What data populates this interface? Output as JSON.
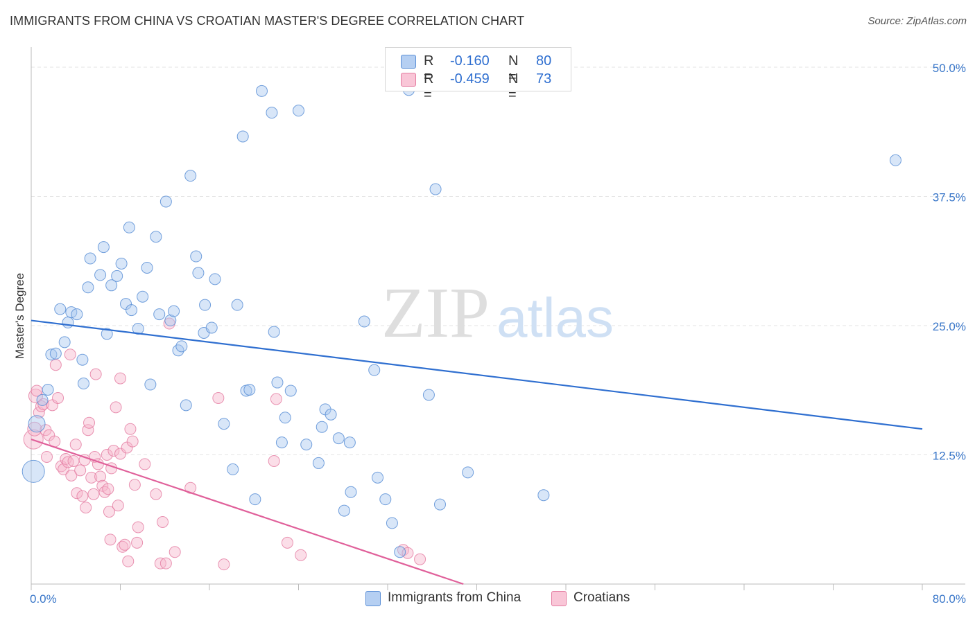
{
  "header": {
    "title": "IMMIGRANTS FROM CHINA VS CROATIAN MASTER'S DEGREE CORRELATION CHART",
    "source": "Source: ZipAtlas.com"
  },
  "watermark": {
    "part1": "ZIP",
    "part2": "atlas"
  },
  "legend_top": {
    "rows": [
      {
        "r_label": "R =",
        "r_value": "-0.160",
        "n_label": "N =",
        "n_value": "80"
      },
      {
        "r_label": "R =",
        "r_value": "-0.459",
        "n_label": "N =",
        "n_value": "73"
      }
    ]
  },
  "legend_bottom": {
    "items": [
      {
        "label": "Immigrants from China"
      },
      {
        "label": "Croatians"
      }
    ]
  },
  "colors": {
    "china_fill": "#a9c8f0",
    "china_stroke": "#5b8fd6",
    "china_line": "#2f6fd0",
    "croatian_fill": "#f6b5cb",
    "croatian_stroke": "#e47ba0",
    "croatian_line": "#e0609a",
    "tick_label": "#3a77c9",
    "grid": "#e3e3e3"
  },
  "chart_data": {
    "type": "scatter",
    "title": "IMMIGRANTS FROM CHINA VS CROATIAN MASTER'S DEGREE CORRELATION CHART",
    "xlabel": "",
    "ylabel": "Master's Degree",
    "xlim": [
      0,
      80
    ],
    "ylim": [
      0,
      50
    ],
    "x_tick_labels": [
      "0.0%",
      "80.0%"
    ],
    "y_ticks": [
      12.5,
      25,
      37.5,
      50
    ],
    "y_tick_labels": [
      "12.5%",
      "25.0%",
      "37.5%",
      "50.0%"
    ],
    "grid": "horizontal dashed",
    "legend_position": "top-center",
    "series": [
      {
        "name": "Immigrants from China",
        "r": -0.16,
        "n": 80,
        "trend": {
          "x": [
            0,
            80
          ],
          "y": [
            25.5,
            15.0
          ]
        },
        "points": [
          [
            0.2,
            10.9,
            16
          ],
          [
            0.5,
            15.5,
            12
          ],
          [
            1.0,
            17.8,
            8
          ],
          [
            1.5,
            18.8,
            8
          ],
          [
            1.8,
            22.2,
            8
          ],
          [
            2.2,
            22.3,
            8
          ],
          [
            2.6,
            26.6,
            8
          ],
          [
            3.0,
            23.4,
            8
          ],
          [
            3.3,
            25.3,
            8
          ],
          [
            3.6,
            26.3,
            8
          ],
          [
            4.1,
            26.1,
            8
          ],
          [
            4.6,
            21.7,
            8
          ],
          [
            4.7,
            19.4,
            8
          ],
          [
            5.1,
            28.7,
            8
          ],
          [
            5.3,
            31.5,
            8
          ],
          [
            6.2,
            29.9,
            8
          ],
          [
            6.5,
            32.6,
            8
          ],
          [
            6.8,
            24.2,
            8
          ],
          [
            7.2,
            28.9,
            8
          ],
          [
            7.7,
            29.8,
            8
          ],
          [
            8.1,
            31.0,
            8
          ],
          [
            8.5,
            27.1,
            8
          ],
          [
            8.8,
            34.5,
            8
          ],
          [
            9.0,
            26.5,
            8
          ],
          [
            9.6,
            24.7,
            8
          ],
          [
            10.0,
            27.8,
            8
          ],
          [
            10.4,
            30.6,
            8
          ],
          [
            10.7,
            19.3,
            8
          ],
          [
            11.2,
            33.6,
            8
          ],
          [
            11.5,
            26.1,
            8
          ],
          [
            12.1,
            37.0,
            8
          ],
          [
            12.5,
            25.5,
            8
          ],
          [
            12.8,
            26.4,
            8
          ],
          [
            13.2,
            22.6,
            8
          ],
          [
            13.5,
            23.0,
            8
          ],
          [
            13.9,
            17.3,
            8
          ],
          [
            14.3,
            39.5,
            8
          ],
          [
            14.8,
            31.7,
            8
          ],
          [
            15.0,
            30.1,
            8
          ],
          [
            15.5,
            24.3,
            8
          ],
          [
            15.6,
            27.0,
            8
          ],
          [
            16.2,
            24.8,
            8
          ],
          [
            16.5,
            29.5,
            8
          ],
          [
            17.3,
            15.5,
            8
          ],
          [
            18.1,
            11.1,
            8
          ],
          [
            18.5,
            27.0,
            8
          ],
          [
            19.0,
            43.3,
            8
          ],
          [
            19.3,
            18.7,
            8
          ],
          [
            19.6,
            18.8,
            8
          ],
          [
            20.1,
            8.2,
            8
          ],
          [
            20.7,
            47.7,
            8
          ],
          [
            21.6,
            45.6,
            8
          ],
          [
            21.8,
            24.4,
            8
          ],
          [
            22.1,
            19.5,
            8
          ],
          [
            22.5,
            13.7,
            8
          ],
          [
            22.8,
            16.1,
            8
          ],
          [
            23.3,
            18.7,
            8
          ],
          [
            24.0,
            45.8,
            8
          ],
          [
            24.7,
            13.5,
            8
          ],
          [
            25.8,
            11.7,
            8
          ],
          [
            26.1,
            15.2,
            8
          ],
          [
            26.4,
            16.9,
            8
          ],
          [
            26.9,
            16.4,
            8
          ],
          [
            27.6,
            14.1,
            8
          ],
          [
            28.1,
            7.1,
            8
          ],
          [
            28.6,
            13.7,
            8
          ],
          [
            28.7,
            8.9,
            8
          ],
          [
            29.9,
            25.4,
            8
          ],
          [
            30.8,
            20.7,
            8
          ],
          [
            31.1,
            10.3,
            8
          ],
          [
            31.8,
            8.2,
            8
          ],
          [
            32.4,
            5.9,
            8
          ],
          [
            33.1,
            3.1,
            8
          ],
          [
            33.9,
            47.8,
            8
          ],
          [
            35.7,
            18.3,
            8
          ],
          [
            36.3,
            38.2,
            8
          ],
          [
            36.7,
            7.7,
            8
          ],
          [
            39.2,
            10.8,
            8
          ],
          [
            46.0,
            8.6,
            8
          ],
          [
            77.6,
            41.0,
            8
          ]
        ]
      },
      {
        "name": "Croatians",
        "r": -0.459,
        "n": 73,
        "trend": {
          "x": [
            0,
            38.8
          ],
          "y": [
            14.0,
            0.0
          ]
        },
        "points": [
          [
            0.2,
            14.0,
            14
          ],
          [
            0.3,
            15.0,
            10
          ],
          [
            0.4,
            18.2,
            10
          ],
          [
            0.5,
            18.7,
            8
          ],
          [
            0.7,
            16.6,
            8
          ],
          [
            0.9,
            17.2,
            8
          ],
          [
            1.1,
            17.4,
            8
          ],
          [
            1.3,
            14.9,
            8
          ],
          [
            1.4,
            12.3,
            8
          ],
          [
            1.6,
            14.4,
            8
          ],
          [
            1.9,
            17.3,
            8
          ],
          [
            2.1,
            13.8,
            8
          ],
          [
            2.2,
            21.2,
            8
          ],
          [
            2.4,
            18.0,
            8
          ],
          [
            2.7,
            11.4,
            8
          ],
          [
            2.9,
            11.1,
            8
          ],
          [
            3.1,
            12.1,
            8
          ],
          [
            3.3,
            11.8,
            8
          ],
          [
            3.5,
            22.2,
            8
          ],
          [
            3.6,
            10.5,
            8
          ],
          [
            3.8,
            11.9,
            8
          ],
          [
            4.0,
            13.5,
            8
          ],
          [
            4.1,
            8.8,
            8
          ],
          [
            4.4,
            11.0,
            8
          ],
          [
            4.6,
            8.5,
            8
          ],
          [
            4.8,
            12.0,
            8
          ],
          [
            4.9,
            7.4,
            8
          ],
          [
            5.1,
            14.9,
            8
          ],
          [
            5.2,
            15.6,
            8
          ],
          [
            5.4,
            10.3,
            8
          ],
          [
            5.6,
            8.7,
            8
          ],
          [
            5.7,
            12.3,
            8
          ],
          [
            5.8,
            20.3,
            8
          ],
          [
            6.0,
            11.6,
            8
          ],
          [
            6.2,
            10.4,
            8
          ],
          [
            6.4,
            9.5,
            8
          ],
          [
            6.6,
            8.9,
            8
          ],
          [
            6.8,
            12.5,
            8
          ],
          [
            6.9,
            9.2,
            8
          ],
          [
            7.0,
            7.0,
            8
          ],
          [
            7.1,
            4.3,
            8
          ],
          [
            7.2,
            11.2,
            8
          ],
          [
            7.4,
            12.9,
            8
          ],
          [
            7.6,
            17.1,
            8
          ],
          [
            7.8,
            7.6,
            8
          ],
          [
            8.0,
            19.9,
            8
          ],
          [
            8.0,
            12.6,
            8
          ],
          [
            8.2,
            3.6,
            8
          ],
          [
            8.4,
            3.8,
            8
          ],
          [
            8.6,
            13.2,
            8
          ],
          [
            8.7,
            2.2,
            8
          ],
          [
            8.9,
            15.0,
            8
          ],
          [
            9.1,
            13.8,
            8
          ],
          [
            9.3,
            9.6,
            8
          ],
          [
            9.5,
            4.0,
            8
          ],
          [
            9.6,
            5.5,
            8
          ],
          [
            10.2,
            11.6,
            8
          ],
          [
            11.2,
            8.7,
            8
          ],
          [
            11.6,
            2.0,
            8
          ],
          [
            11.8,
            6.0,
            8
          ],
          [
            12.1,
            2.0,
            8
          ],
          [
            12.4,
            25.2,
            8
          ],
          [
            12.9,
            3.1,
            8
          ],
          [
            14.3,
            9.3,
            8
          ],
          [
            16.8,
            18.0,
            8
          ],
          [
            17.3,
            1.9,
            8
          ],
          [
            21.8,
            11.9,
            8
          ],
          [
            22.0,
            17.9,
            8
          ],
          [
            23.0,
            4.0,
            8
          ],
          [
            24.2,
            2.8,
            8
          ],
          [
            33.4,
            3.3,
            8
          ],
          [
            34.9,
            2.4,
            8
          ],
          [
            33.8,
            3.0,
            8
          ]
        ]
      }
    ]
  }
}
